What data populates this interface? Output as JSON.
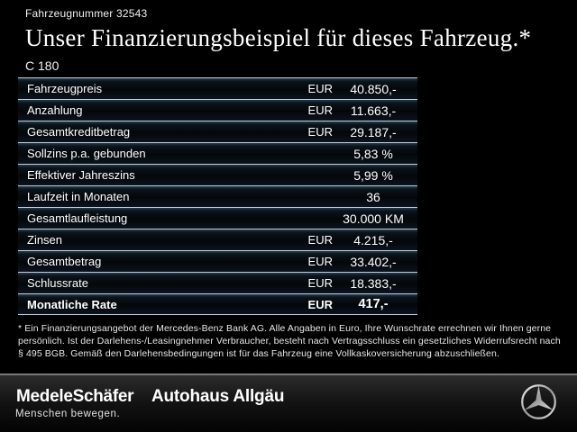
{
  "header": {
    "vehicle_number": "Fahrzeugnummer 32543",
    "title": "Unser Finanzierungsbeispiel für dieses Fahrzeug.*",
    "model": "C 180"
  },
  "table": {
    "rows": [
      {
        "label": "Fahrzeugpreis",
        "currency": "EUR",
        "value": "40.850,-",
        "bold": false
      },
      {
        "label": "Anzahlung",
        "currency": "EUR",
        "value": "11.663,-",
        "bold": false
      },
      {
        "label": "Gesamtkreditbetrag",
        "currency": "EUR",
        "value": "29.187,-",
        "bold": false
      },
      {
        "label": "Sollzins p.a. gebunden",
        "currency": "",
        "value": "5,83 %",
        "bold": false
      },
      {
        "label": "Effektiver Jahreszins",
        "currency": "",
        "value": "5,99 %",
        "bold": false
      },
      {
        "label": "Laufzeit in Monaten",
        "currency": "",
        "value": "36",
        "bold": false
      },
      {
        "label": "Gesamtlaufleistung",
        "currency": "",
        "value": "30.000 KM",
        "bold": false
      },
      {
        "label": "Zinsen",
        "currency": "EUR",
        "value": "4.215,-",
        "bold": false
      },
      {
        "label": "Gesamtbetrag",
        "currency": "EUR",
        "value": "33.402,-",
        "bold": false
      },
      {
        "label": "Schlussrate",
        "currency": "EUR",
        "value": "18.383,-",
        "bold": false
      },
      {
        "label": "Monatliche Rate",
        "currency": "EUR",
        "value": "417,-",
        "bold": true
      }
    ]
  },
  "footnote": {
    "line1": "* Ein Finanzierungsangebot der Mercedes-Benz Bank AG. Alle Angaben in Euro, Ihre Wunschrate errechnen wir Ihnen gerne",
    "line2": "persönlich. Ist der Darlehens-/Leasingnehmer Verbraucher, besteht nach Vertragsschluss ein gesetzliches Widerrufsrecht nach",
    "line3": "§ 495 BGB. Gemäß den Darlehensbedingungen ist für das Fahrzeug eine Vollkaskoversicherung abzuschließen."
  },
  "footer": {
    "dealer_logo": "MedeleSchäfer",
    "dealer_tagline": "Menschen bewegen.",
    "dealer_name2": "Autohaus Allgäu",
    "brand_logo_name": "mercedes-benz-star-icon"
  },
  "colors": {
    "background": "#000000",
    "row_separator": "#c2ced8",
    "row_background_dark": "#04070a",
    "row_glow": "#23394a",
    "footer_divider": "#767a7d",
    "footer_top": "#2c2c2c",
    "text": "#ffffff",
    "star_silver_light": "#f2f2f2",
    "star_silver_dark": "#8a8a8a"
  }
}
